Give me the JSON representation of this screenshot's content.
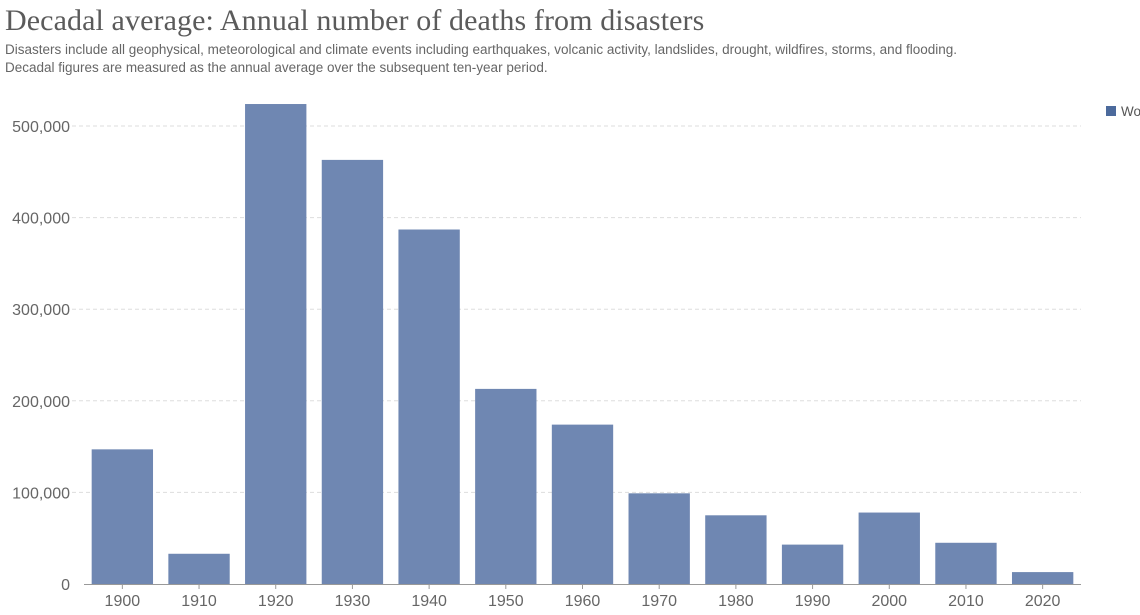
{
  "header": {
    "title": "Decadal average: Annual number of deaths from disasters",
    "subtitle_line1": "Disasters include all geophysical, meteorological and climate events including earthquakes, volcanic activity, landslides, drought, wildfires, storms, and flooding.",
    "subtitle_line2": "Decadal figures are measured as the annual average over the subsequent ten-year period."
  },
  "colors": {
    "bar": "#6f87b2",
    "legend_swatch": "#4c6a9c",
    "grid": "#dddddd",
    "axis": "#999999"
  },
  "chart_data": {
    "type": "bar",
    "title": "Decadal average: Annual number of deaths from disasters",
    "xlabel": "",
    "ylabel": "",
    "categories": [
      "1900",
      "1910",
      "1920",
      "1930",
      "1940",
      "1950",
      "1960",
      "1970",
      "1980",
      "1990",
      "2000",
      "2010",
      "2020"
    ],
    "series": [
      {
        "name": "Wo",
        "values": [
          147000,
          33000,
          524000,
          463000,
          387000,
          213000,
          174000,
          99000,
          75000,
          43000,
          78000,
          45000,
          13000
        ]
      }
    ],
    "ylim": [
      0,
      520000
    ],
    "yticks": [
      0,
      100000,
      200000,
      300000,
      400000,
      500000
    ],
    "ytick_labels": [
      "0",
      "100,000",
      "200,000",
      "300,000",
      "400,000",
      "500,000"
    ],
    "grid": true,
    "legend_position": "top-right"
  }
}
